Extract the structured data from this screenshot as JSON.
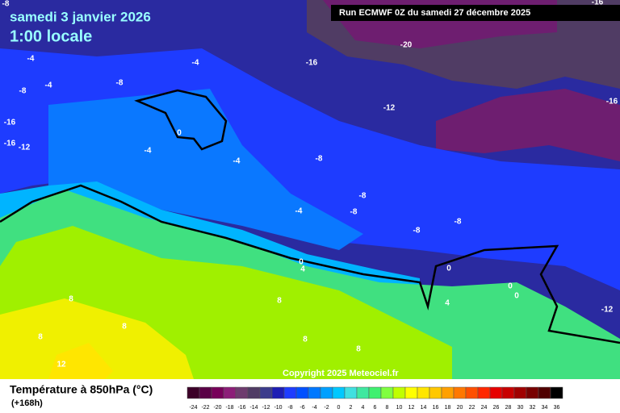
{
  "header": {
    "date": "samedi 3 janvier 2026",
    "time": "1:00 locale",
    "run": "Run ECMWF 0Z du samedi 27 décembre 2025",
    "copyright": "Copyright 2025 Meteociel.fr"
  },
  "footer": {
    "title": "Température à 850hPa (°C)",
    "lead": "(+168h)"
  },
  "contour_labels": [
    -8,
    -4,
    -4,
    -8,
    -16,
    -16,
    -12,
    -4,
    -8,
    -16,
    -20,
    -12,
    -16,
    -16,
    0,
    -4,
    -4,
    -8,
    -8,
    -8,
    -4,
    -8,
    -8,
    0,
    4,
    0,
    0,
    0,
    4,
    -12,
    8,
    8,
    8,
    8,
    8,
    8,
    12
  ],
  "legend": {
    "labels": [
      -24,
      -22,
      -20,
      -18,
      -16,
      -14,
      -12,
      -10,
      -8,
      -6,
      -4,
      -2,
      0,
      2,
      4,
      6,
      8,
      10,
      12,
      14,
      16,
      18,
      20,
      22,
      24,
      26,
      28,
      30,
      32,
      34,
      36
    ],
    "colors": [
      "#3c0028",
      "#5a0046",
      "#78005a",
      "#8c1e78",
      "#6e3c6e",
      "#503c64",
      "#3c3c8c",
      "#1e1eb4",
      "#1e3cff",
      "#0050ff",
      "#0078ff",
      "#00a0ff",
      "#00c8ff",
      "#40e0e0",
      "#40e8a0",
      "#40f070",
      "#80ff40",
      "#c0ff00",
      "#ffff00",
      "#ffe600",
      "#ffc800",
      "#ffa000",
      "#ff7800",
      "#ff5000",
      "#ff2800",
      "#e60000",
      "#c80000",
      "#a00000",
      "#780000",
      "#500000",
      "#000000"
    ]
  }
}
